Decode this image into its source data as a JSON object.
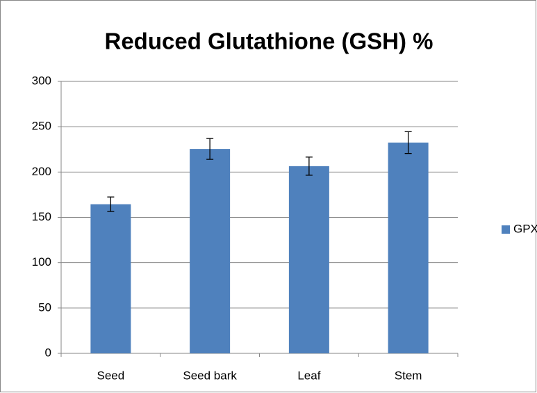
{
  "chart_data": {
    "type": "bar",
    "title": "Reduced Glutathione (GSH) %",
    "categories": [
      "Seed",
      "Seed bark",
      "Leaf",
      "Stem"
    ],
    "series": [
      {
        "name": "GPX",
        "color": "#4f81bd",
        "values": [
          164.5,
          225.5,
          206.5,
          232.5
        ],
        "errors": [
          8,
          11.5,
          10,
          12
        ]
      }
    ],
    "ylim": [
      0,
      300
    ],
    "yticks": [
      0,
      50,
      100,
      150,
      200,
      250,
      300
    ],
    "grid": true,
    "legend": "right"
  }
}
